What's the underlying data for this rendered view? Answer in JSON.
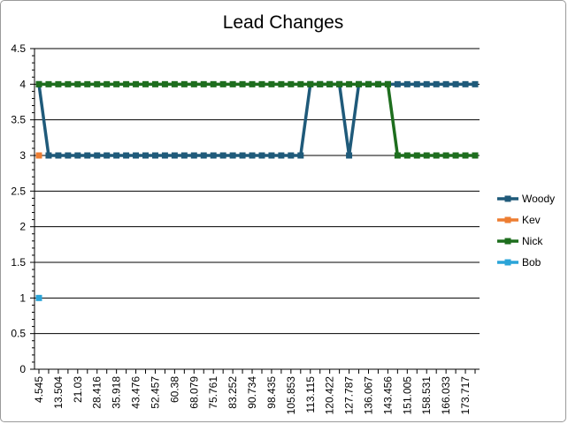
{
  "chart_data": {
    "type": "line",
    "title": "Lead Changes",
    "xlabel": "",
    "ylabel": "",
    "ylim": [
      0,
      4.5
    ],
    "yticks": [
      "0",
      "0.5",
      "1",
      "1.5",
      "2",
      "2.5",
      "3",
      "3.5",
      "4",
      "4.5"
    ],
    "grid": true,
    "legend_position": "right",
    "x_tick_labels": [
      "4.545",
      "13.504",
      "21.03",
      "28.416",
      "35.918",
      "43.476",
      "52.457",
      "60.38",
      "68.079",
      "75.761",
      "83.252",
      "90.734",
      "98.435",
      "105.853",
      "113.115",
      "120.422",
      "127.787",
      "136.067",
      "143.456",
      "151.005",
      "158.531",
      "166.033",
      "173.717"
    ],
    "x_count": 46,
    "series": [
      {
        "name": "Woody",
        "color": "#1f5a7a",
        "values": [
          4,
          3,
          3,
          3,
          3,
          3,
          3,
          3,
          3,
          3,
          3,
          3,
          3,
          3,
          3,
          3,
          3,
          3,
          3,
          3,
          3,
          3,
          3,
          3,
          3,
          3,
          3,
          3,
          4,
          4,
          4,
          4,
          3,
          4,
          4,
          4,
          4,
          4,
          4,
          4,
          4,
          4,
          4,
          4,
          4,
          4
        ]
      },
      {
        "name": "Kev",
        "color": "#ed7d31",
        "values": [
          3
        ]
      },
      {
        "name": "Nick",
        "color": "#1e6e1e",
        "values": [
          4,
          4,
          4,
          4,
          4,
          4,
          4,
          4,
          4,
          4,
          4,
          4,
          4,
          4,
          4,
          4,
          4,
          4,
          4,
          4,
          4,
          4,
          4,
          4,
          4,
          4,
          4,
          4,
          4,
          4,
          4,
          4,
          4,
          4,
          4,
          4,
          4,
          3,
          3,
          3,
          3,
          3,
          3,
          3,
          3,
          3
        ]
      },
      {
        "name": "Bob",
        "color": "#2aa4d8",
        "values": [
          1
        ]
      }
    ]
  }
}
